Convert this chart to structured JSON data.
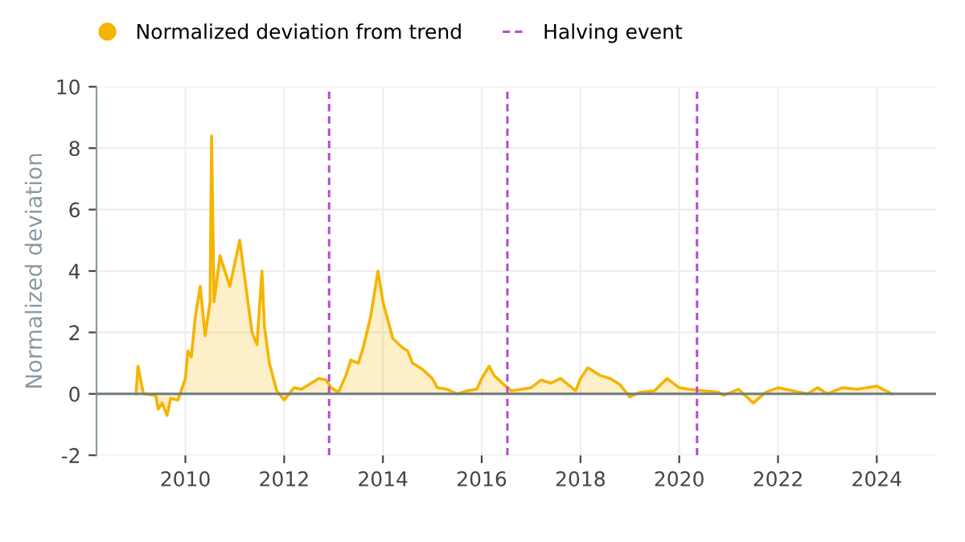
{
  "chart_data": {
    "type": "area",
    "ylabel": "Normalized deviation",
    "xlim": [
      2008.2,
      2025.2
    ],
    "ylim": [
      -2,
      10
    ],
    "xticks": [
      2010,
      2012,
      2014,
      2016,
      2018,
      2020,
      2022,
      2024
    ],
    "yticks": [
      -2,
      0,
      2,
      4,
      6,
      8,
      10
    ],
    "grid": true,
    "legend": "top",
    "marker": "none",
    "line_style": "solid",
    "series": [
      {
        "name": "Normalized deviation from trend",
        "color": "#f5b400",
        "x": [
          2009.0,
          2009.04,
          2009.15,
          2009.4,
          2009.45,
          2009.53,
          2009.63,
          2009.7,
          2009.85,
          2010.0,
          2010.05,
          2010.12,
          2010.2,
          2010.3,
          2010.4,
          2010.5,
          2010.53,
          2010.58,
          2010.7,
          2010.9,
          2011.1,
          2011.2,
          2011.35,
          2011.45,
          2011.55,
          2011.6,
          2011.7,
          2011.85,
          2012.0,
          2012.2,
          2012.35,
          2012.5,
          2012.7,
          2012.85,
          2012.95,
          2013.1,
          2013.25,
          2013.35,
          2013.5,
          2013.6,
          2013.75,
          2013.9,
          2014.0,
          2014.2,
          2014.4,
          2014.5,
          2014.6,
          2014.8,
          2015.0,
          2015.1,
          2015.3,
          2015.5,
          2015.7,
          2015.9,
          2016.0,
          2016.15,
          2016.25,
          2016.45,
          2016.6,
          2016.8,
          2017.0,
          2017.2,
          2017.4,
          2017.6,
          2017.9,
          2018.0,
          2018.15,
          2018.4,
          2018.6,
          2018.8,
          2019.0,
          2019.2,
          2019.5,
          2019.75,
          2020.0,
          2020.2,
          2020.5,
          2020.8,
          2020.9,
          2021.2,
          2021.5,
          2021.75,
          2022.0,
          2022.3,
          2022.6,
          2022.8,
          2023.0,
          2023.3,
          2023.6,
          2024.0,
          2024.3
        ],
        "values": [
          0,
          0.9,
          0,
          -0.05,
          -0.5,
          -0.3,
          -0.7,
          -0.15,
          -0.2,
          0.5,
          1.4,
          1.2,
          2.5,
          3.5,
          1.9,
          3.0,
          8.4,
          3.0,
          4.5,
          3.5,
          5.0,
          3.8,
          2.0,
          1.6,
          4.0,
          2.2,
          1.0,
          0.1,
          -0.2,
          0.2,
          0.15,
          0.3,
          0.5,
          0.45,
          0.2,
          0.05,
          0.6,
          1.1,
          1.0,
          1.5,
          2.5,
          4.0,
          3.0,
          1.8,
          1.5,
          1.4,
          1.0,
          0.8,
          0.5,
          0.2,
          0.15,
          0.0,
          0.1,
          0.15,
          0.5,
          0.9,
          0.6,
          0.3,
          0.1,
          0.15,
          0.2,
          0.45,
          0.35,
          0.5,
          0.1,
          0.5,
          0.85,
          0.6,
          0.5,
          0.3,
          -0.1,
          0.05,
          0.1,
          0.5,
          0.2,
          0.15,
          0.1,
          0.05,
          -0.05,
          0.15,
          -0.3,
          0.05,
          0.2,
          0.1,
          0.0,
          0.2,
          0.0,
          0.2,
          0.15,
          0.25,
          0.0
        ]
      }
    ],
    "ref_lines": [
      {
        "axis": "y",
        "value": 0,
        "color": "#6e7b80",
        "line_style": "solid"
      },
      {
        "axis": "x",
        "value": 2012.91,
        "label": "Halving event",
        "color": "#b44ccf",
        "line_style": "dashed"
      },
      {
        "axis": "x",
        "value": 2016.52,
        "color": "#b44ccf",
        "line_style": "dashed"
      },
      {
        "axis": "x",
        "value": 2020.36,
        "color": "#b44ccf",
        "line_style": "dashed"
      }
    ]
  }
}
